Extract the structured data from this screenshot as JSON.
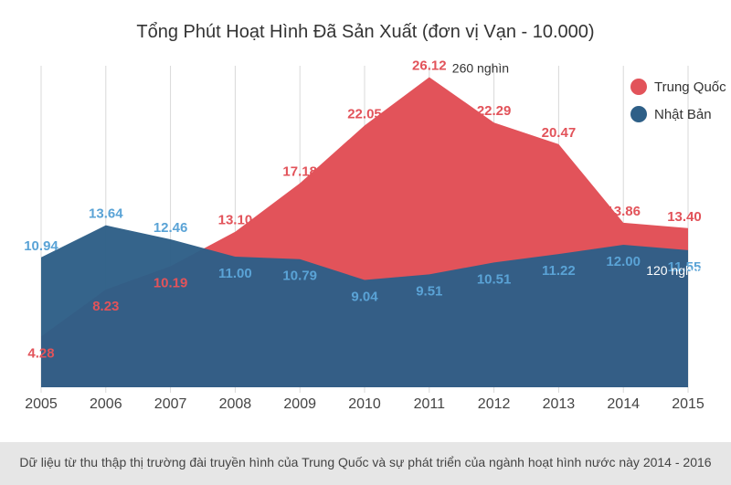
{
  "chart_data": {
    "type": "area",
    "title": "Tổng Phút Hoạt Hình Đã Sản Xuất (đơn vị Vạn - 10.000)",
    "categories": [
      "2005",
      "2006",
      "2007",
      "2008",
      "2009",
      "2010",
      "2011",
      "2012",
      "2013",
      "2014",
      "2015"
    ],
    "series": [
      {
        "name": "Trung Quốc",
        "color": "#e2535a",
        "label_color": "#e2535a",
        "values": [
          4.28,
          8.23,
          10.19,
          13.1,
          17.18,
          22.05,
          26.12,
          22.29,
          20.47,
          13.86,
          13.4
        ],
        "labels": [
          "4.28",
          "8.23",
          "10.19",
          "13.10",
          "17.18",
          "22.05",
          "26.12",
          "22.29",
          "20.47",
          "13.86",
          "13.40"
        ]
      },
      {
        "name": "Nhật Bản",
        "color": "#2e5f87",
        "label_color": "#5aa3d6",
        "values": [
          10.94,
          13.64,
          12.46,
          11.0,
          10.79,
          9.04,
          9.51,
          10.51,
          11.22,
          12.0,
          11.55
        ],
        "labels": [
          "10.94",
          "13.64",
          "12.46",
          "11.00",
          "10.79",
          "9.04",
          "9.51",
          "10.51",
          "11.22",
          "12.00",
          "11.55"
        ]
      }
    ],
    "annotations": [
      {
        "text": "260 nghìn",
        "series": "Trung Quốc",
        "category": "2011",
        "color": "#333333"
      },
      {
        "text": "120 nghìn",
        "series": "Nhật Bản",
        "category": "2014",
        "color": "#ffffff"
      }
    ],
    "ylim": [
      0,
      28
    ],
    "grid": "vertical",
    "legend": "top-right"
  },
  "footer": {
    "text": "Dữ liệu từ thu thập thị trường đài truyền hình của Trung Quốc và sự phát triển của ngành hoạt hình nước này 2014 - 2016"
  }
}
